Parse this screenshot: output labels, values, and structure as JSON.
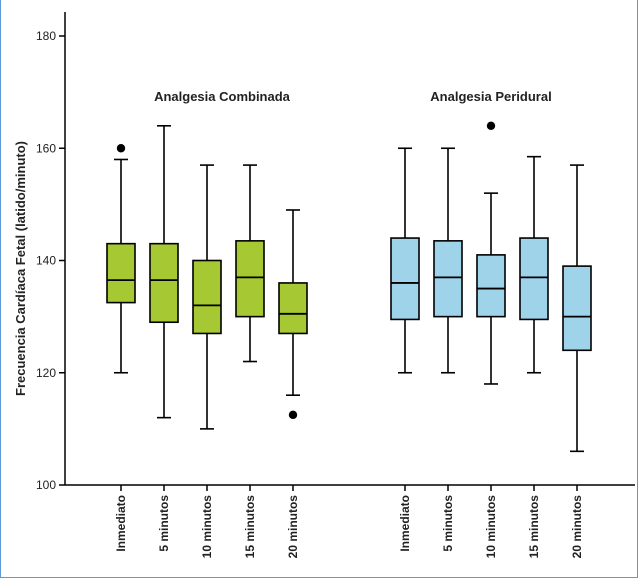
{
  "chart_data": {
    "type": "boxplot",
    "ylabel": "Frecuencia Cardíaca Fetal (latido/minuto)",
    "ylim": [
      100,
      180
    ],
    "yticks": [
      100,
      120,
      140,
      160,
      180
    ],
    "grid": false,
    "groups": [
      {
        "name": "Analgesia Combinada",
        "color": "#a6c832",
        "categories": [
          "Inmediato",
          "5 minutos",
          "10 minutos",
          "15 minutos",
          "20 minutos"
        ],
        "boxes": [
          {
            "min": 120,
            "q1": 132.5,
            "median": 136.5,
            "q3": 143,
            "max": 158,
            "outliers": [
              160
            ]
          },
          {
            "min": 112,
            "q1": 129,
            "median": 136.5,
            "q3": 143,
            "max": 164,
            "outliers": []
          },
          {
            "min": 110,
            "q1": 127,
            "median": 132,
            "q3": 140,
            "max": 157,
            "outliers": []
          },
          {
            "min": 122,
            "q1": 130,
            "median": 137,
            "q3": 143.5,
            "max": 157,
            "outliers": []
          },
          {
            "min": 116,
            "q1": 127,
            "median": 130.5,
            "q3": 136,
            "max": 149,
            "outliers": [
              112.5
            ]
          }
        ]
      },
      {
        "name": "Analgesia Peridural",
        "color": "#9fd3ea",
        "categories": [
          "Inmediato",
          "5 minutos",
          "10 minutos",
          "15 minutos",
          "20 minutos"
        ],
        "boxes": [
          {
            "min": 120,
            "q1": 129.5,
            "median": 136,
            "q3": 144,
            "max": 160,
            "outliers": []
          },
          {
            "min": 120,
            "q1": 130,
            "median": 137,
            "q3": 143.5,
            "max": 160,
            "outliers": []
          },
          {
            "min": 118,
            "q1": 130,
            "median": 135,
            "q3": 141,
            "max": 152,
            "outliers": [
              164
            ]
          },
          {
            "min": 120,
            "q1": 129.5,
            "median": 137,
            "q3": 144,
            "max": 158.5,
            "outliers": []
          },
          {
            "min": 106,
            "q1": 124,
            "median": 130,
            "q3": 139,
            "max": 157,
            "outliers": []
          }
        ]
      }
    ]
  }
}
